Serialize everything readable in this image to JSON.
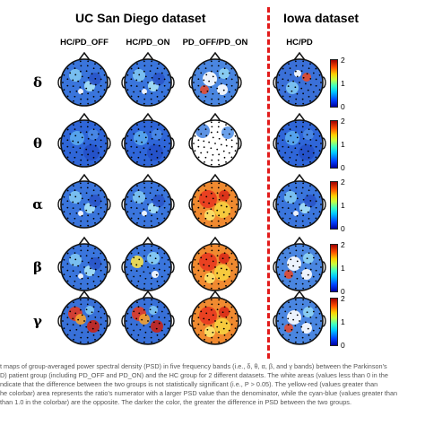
{
  "titles": {
    "ucsd": "UC San Diego dataset",
    "iowa": "Iowa dataset"
  },
  "columns": [
    "HC/PD_OFF",
    "HC/PD_ON",
    "PD_OFF/PD_ON",
    "HC/PD"
  ],
  "rows": [
    "δ",
    "θ",
    "α",
    "β",
    "γ"
  ],
  "colorbar": {
    "ticks": [
      "2",
      "1",
      "0"
    ]
  },
  "colors": {
    "divider": "#e21b1b",
    "insignificant": "#ffffff",
    "low": "#0030c8",
    "high": "#e01000"
  },
  "maps": [
    [
      "blue-lightspots",
      "blue-lightspots",
      "mixed-white"
    ],
    [
      "blue-uniform",
      "blue-uniform",
      "white-dotted"
    ],
    [
      "blue-lightspots",
      "blue-lightspots",
      "red-yellow"
    ],
    [
      "blue-lightspots",
      "blue-yellow",
      "red-yellow"
    ],
    [
      "blue-red",
      "blue-red",
      "red-yellow"
    ]
  ],
  "iowa_maps": [
    "blue-mixed",
    "blue-uniform",
    "blue-lightspots",
    "mixed-white",
    "mixed-white"
  ],
  "caption": [
    "t maps of group-averaged power spectral density (PSD) in five frequency bands (i.e., δ, θ, α, β, and γ bands) between the Parkinson's",
    "D) patient group (including PD_OFF and PD_ON) and the HC group for 2 different datasets. The white areas (values less than 0 in the",
    "ndicate that the difference between the two groups is not statistically significant (i.e., P > 0.05). The yellow-red (values greater than",
    "he colorbar) area represents the ratio's numerator with a larger PSD value than the denominator, while the cyan-blue (values greater than",
    "than 1.0 in the colorbar) are the opposite. The darker the color, the greater the difference in PSD between the two groups."
  ]
}
